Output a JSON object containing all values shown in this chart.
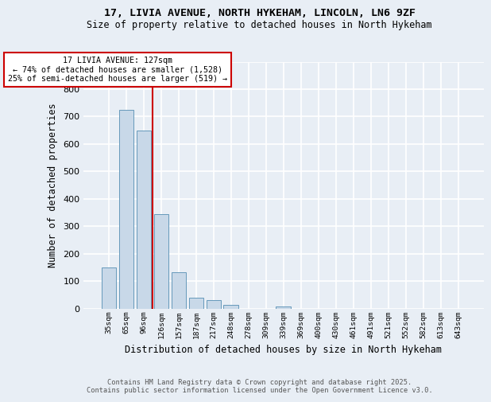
{
  "title_line1": "17, LIVIA AVENUE, NORTH HYKEHAM, LINCOLN, LN6 9ZF",
  "title_line2": "Size of property relative to detached houses in North Hykeham",
  "xlabel": "Distribution of detached houses by size in North Hykeham",
  "ylabel": "Number of detached properties",
  "footer_line1": "Contains HM Land Registry data © Crown copyright and database right 2025.",
  "footer_line2": "Contains public sector information licensed under the Open Government Licence v3.0.",
  "bin_labels": [
    "35sqm",
    "65sqm",
    "96sqm",
    "126sqm",
    "157sqm",
    "187sqm",
    "217sqm",
    "248sqm",
    "278sqm",
    "309sqm",
    "339sqm",
    "369sqm",
    "400sqm",
    "430sqm",
    "461sqm",
    "491sqm",
    "521sqm",
    "552sqm",
    "582sqm",
    "613sqm",
    "643sqm"
  ],
  "bin_values": [
    150,
    725,
    650,
    345,
    133,
    40,
    30,
    12,
    0,
    0,
    7,
    0,
    0,
    0,
    0,
    0,
    0,
    0,
    0,
    0,
    0
  ],
  "bar_color": "#c8d8e8",
  "bar_edge_color": "#6699bb",
  "vline_x_index": 3,
  "vline_color": "#cc0000",
  "annotation_title": "17 LIVIA AVENUE: 127sqm",
  "annotation_line1": "← 74% of detached houses are smaller (1,528)",
  "annotation_line2": "25% of semi-detached houses are larger (519) →",
  "annotation_box_color": "#ffffff",
  "annotation_box_edge": "#cc0000",
  "background_color": "#e8eef5",
  "grid_color": "#ffffff",
  "ylim": [
    0,
    900
  ],
  "yticks": [
    0,
    100,
    200,
    300,
    400,
    500,
    600,
    700,
    800,
    900
  ]
}
